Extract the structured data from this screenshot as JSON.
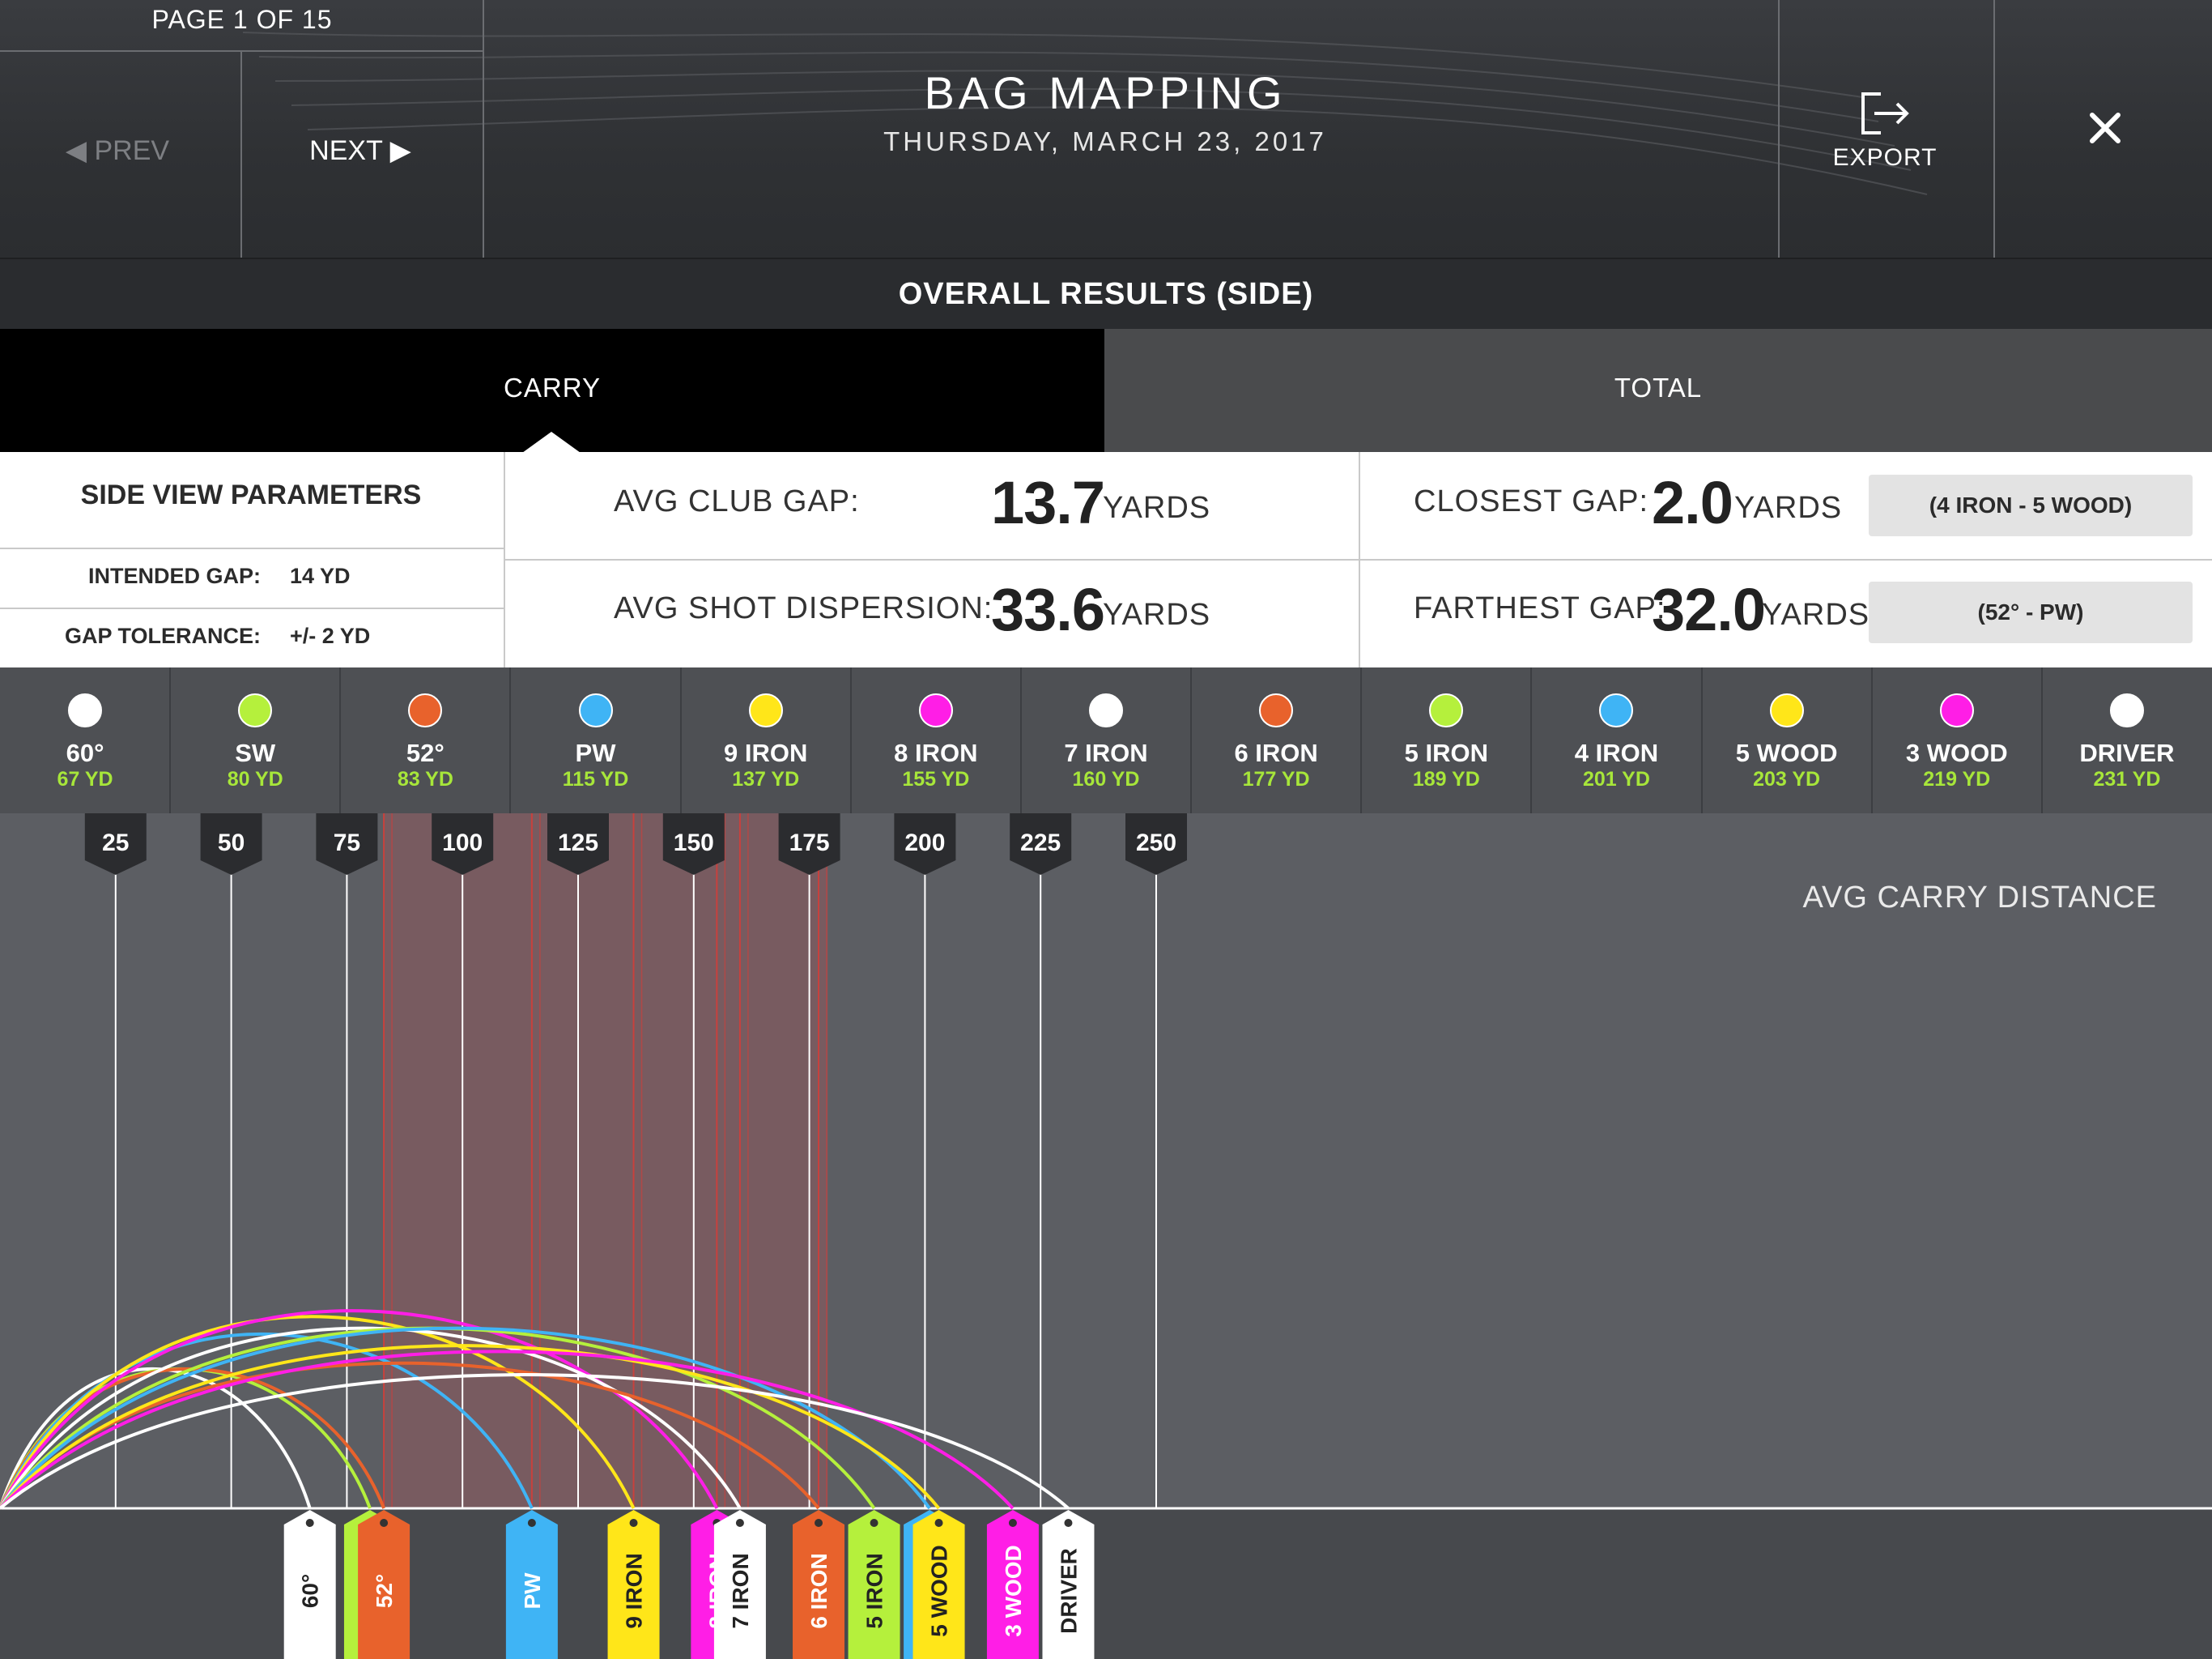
{
  "header": {
    "page_label": "PAGE 1 OF 15",
    "prev_label": "◀ PREV",
    "next_label": "NEXT ▶",
    "title": "BAG MAPPING",
    "date": "THURSDAY, MARCH 23, 2017",
    "export_label": "EXPORT",
    "close_icon": "close-icon",
    "export_icon": "export-icon"
  },
  "results_bar": {
    "label": "OVERALL RESULTS (SIDE)"
  },
  "tabs": [
    {
      "label": "CARRY",
      "selected": true
    },
    {
      "label": "TOTAL",
      "selected": false
    }
  ],
  "parameters": {
    "title": "SIDE VIEW PARAMETERS",
    "intended_gap_label": "INTENDED GAP:",
    "intended_gap_value": "14 YD",
    "gap_tolerance_label": "GAP TOLERANCE:",
    "gap_tolerance_value": "+/- 2 YD"
  },
  "stats": {
    "avg_club_gap_label": "AVG CLUB GAP:",
    "avg_club_gap_value": "13.7",
    "avg_shot_dispersion_label": "AVG SHOT DISPERSION:",
    "avg_shot_dispersion_value": "33.6",
    "closest_gap_label": "CLOSEST GAP:",
    "closest_gap_value": "2.0",
    "closest_gap_pair": "(4 IRON - 5 WOOD)",
    "farthest_gap_label": "FARTHEST GAP:",
    "farthest_gap_value": "32.0",
    "farthest_gap_pair": "(52° - PW)",
    "unit": "YARDS"
  },
  "clubs": [
    {
      "name": "60°",
      "yd_label": "67 YD",
      "carry": 67,
      "color": "#ffffff",
      "tag": "60°"
    },
    {
      "name": "SW",
      "yd_label": "80 YD",
      "carry": 80,
      "color": "#b5f03c",
      "tag": "SW"
    },
    {
      "name": "52°",
      "yd_label": "83 YD",
      "carry": 83,
      "color": "#e8622c",
      "tag": "52°"
    },
    {
      "name": "PW",
      "yd_label": "115 YD",
      "carry": 115,
      "color": "#3fb4f5",
      "tag": "PW"
    },
    {
      "name": "9 IRON",
      "yd_label": "137 YD",
      "carry": 137,
      "color": "#ffe619",
      "tag": "9 IRON"
    },
    {
      "name": "8 IRON",
      "yd_label": "155 YD",
      "carry": 155,
      "color": "#ff1ee6",
      "tag": "8 IRON"
    },
    {
      "name": "7 IRON",
      "yd_label": "160 YD",
      "carry": 160,
      "color": "#ffffff",
      "tag": "7 IRON"
    },
    {
      "name": "6 IRON",
      "yd_label": "177 YD",
      "carry": 177,
      "color": "#e8622c",
      "tag": "6 IRON"
    },
    {
      "name": "5 IRON",
      "yd_label": "189 YD",
      "carry": 189,
      "color": "#b5f03c",
      "tag": "5 IRON"
    },
    {
      "name": "4 IRON",
      "yd_label": "201 YD",
      "carry": 201,
      "color": "#3fb4f5",
      "tag": "4 IRON"
    },
    {
      "name": "5 WOOD",
      "yd_label": "203 YD",
      "carry": 203,
      "color": "#ffe619",
      "tag": "5 WOOD"
    },
    {
      "name": "3 WOOD",
      "yd_label": "219 YD",
      "carry": 219,
      "color": "#ff1ee6",
      "tag": "3 WOOD"
    },
    {
      "name": "DRIVER",
      "yd_label": "231 YD",
      "carry": 231,
      "color": "#ffffff",
      "tag": "DRIVER"
    }
  ],
  "chart_data": {
    "type": "line",
    "title": "",
    "axis_label": "AVG CARRY DISTANCE",
    "x_ticks": [
      25,
      50,
      75,
      100,
      125,
      150,
      175,
      200,
      225,
      250
    ],
    "xlim": [
      0,
      275
    ],
    "highlight_range": [
      83,
      179
    ],
    "highlight_color": "#7c5a5f",
    "series": [
      {
        "name": "60°",
        "landing": 67,
        "apex": 24
      },
      {
        "name": "SW",
        "landing": 80,
        "apex": 24
      },
      {
        "name": "52°",
        "landing": 83,
        "apex": 24
      },
      {
        "name": "PW",
        "landing": 115,
        "apex": 30
      },
      {
        "name": "9 IRON",
        "landing": 137,
        "apex": 33
      },
      {
        "name": "8 IRON",
        "landing": 155,
        "apex": 34
      },
      {
        "name": "7 IRON",
        "landing": 160,
        "apex": 31
      },
      {
        "name": "6 IRON",
        "landing": 177,
        "apex": 25
      },
      {
        "name": "5 IRON",
        "landing": 189,
        "apex": 31
      },
      {
        "name": "4 IRON",
        "landing": 201,
        "apex": 31
      },
      {
        "name": "5 WOOD",
        "landing": 203,
        "apex": 28
      },
      {
        "name": "3 WOOD",
        "landing": 219,
        "apex": 27
      },
      {
        "name": "DRIVER",
        "landing": 231,
        "apex": 23
      }
    ],
    "grid": true
  }
}
